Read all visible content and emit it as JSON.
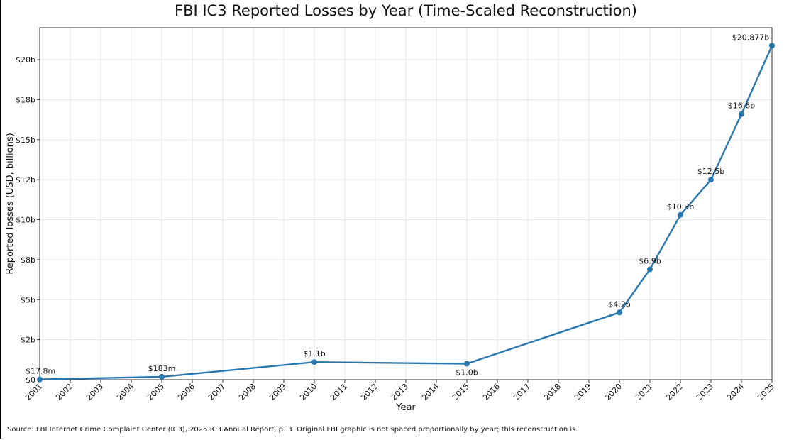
{
  "chart_data": {
    "type": "line",
    "title": "FBI IC3 Reported Losses by Year (Time-Scaled Reconstruction)",
    "xlabel": "Year",
    "ylabel": "Reported losses (USD, billions)",
    "xlim": [
      2001,
      2025
    ],
    "ylim": [
      0,
      22
    ],
    "x_ticks": [
      2001,
      2002,
      2003,
      2004,
      2005,
      2006,
      2007,
      2008,
      2009,
      2010,
      2011,
      2012,
      2013,
      2014,
      2015,
      2016,
      2017,
      2018,
      2019,
      2020,
      2021,
      2022,
      2023,
      2024,
      2025
    ],
    "y_ticks": [
      {
        "value": 0,
        "label": "$0"
      },
      {
        "value": 2.5,
        "label": "$2b"
      },
      {
        "value": 5,
        "label": "$5b"
      },
      {
        "value": 7.5,
        "label": "$8b"
      },
      {
        "value": 10,
        "label": "$10b"
      },
      {
        "value": 12.5,
        "label": "$12b"
      },
      {
        "value": 15,
        "label": "$15b"
      },
      {
        "value": 17.5,
        "label": "$18b"
      },
      {
        "value": 20,
        "label": "$20b"
      }
    ],
    "grid": true,
    "color": "#2878b0",
    "series": [
      {
        "points": [
          {
            "x": 2001,
            "y": 0.0178,
            "label": "$17.8m",
            "label_pos": "above"
          },
          {
            "x": 2005,
            "y": 0.183,
            "label": "$183m",
            "label_pos": "above"
          },
          {
            "x": 2010,
            "y": 1.1,
            "label": "$1.1b",
            "label_pos": "above"
          },
          {
            "x": 2015,
            "y": 1.0,
            "label": "$1.0b",
            "label_pos": "below"
          },
          {
            "x": 2020,
            "y": 4.2,
            "label": "$4.2b",
            "label_pos": "above"
          },
          {
            "x": 2021,
            "y": 6.9,
            "label": "$6.9b",
            "label_pos": "above"
          },
          {
            "x": 2022,
            "y": 10.3,
            "label": "$10.3b",
            "label_pos": "above"
          },
          {
            "x": 2023,
            "y": 12.5,
            "label": "$12.5b",
            "label_pos": "above"
          },
          {
            "x": 2024,
            "y": 16.6,
            "label": "$16.6b",
            "label_pos": "above"
          },
          {
            "x": 2025,
            "y": 20.877,
            "label": "$20.877b",
            "label_pos": "above"
          }
        ]
      }
    ],
    "source": "Source: FBI Internet Crime Complaint Center (IC3), 2025 IC3 Annual Report, p. 3. Original FBI graphic is not spaced proportionally by year; this reconstruction is."
  }
}
